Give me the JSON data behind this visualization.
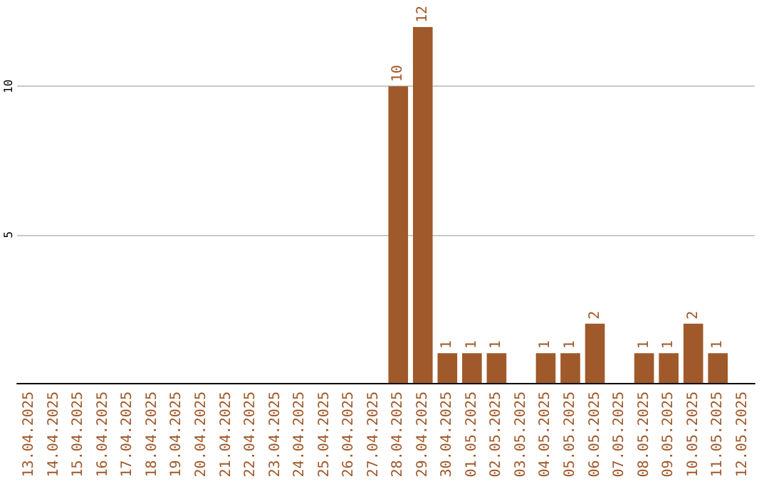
{
  "chart_data": {
    "type": "bar",
    "categories": [
      "13.04.2025",
      "14.04.2025",
      "15.04.2025",
      "16.04.2025",
      "17.04.2025",
      "18.04.2025",
      "19.04.2025",
      "20.04.2025",
      "21.04.2025",
      "22.04.2025",
      "23.04.2025",
      "24.04.2025",
      "25.04.2025",
      "26.04.2025",
      "27.04.2025",
      "28.04.2025",
      "29.04.2025",
      "30.04.2025",
      "01.05.2025",
      "02.05.2025",
      "03.05.2025",
      "04.05.2025",
      "05.05.2025",
      "06.05.2025",
      "07.05.2025",
      "08.05.2025",
      "09.05.2025",
      "10.05.2025",
      "11.05.2025",
      "12.05.2025"
    ],
    "values": [
      null,
      null,
      null,
      null,
      null,
      null,
      null,
      null,
      null,
      null,
      null,
      null,
      null,
      null,
      null,
      10,
      12,
      1,
      1,
      1,
      null,
      1,
      1,
      2,
      null,
      1,
      1,
      2,
      1,
      null
    ],
    "color": "#a0592a",
    "ylim": [
      0,
      12
    ],
    "yticks": [
      5,
      10
    ],
    "grid": "y",
    "data_labels": true
  }
}
